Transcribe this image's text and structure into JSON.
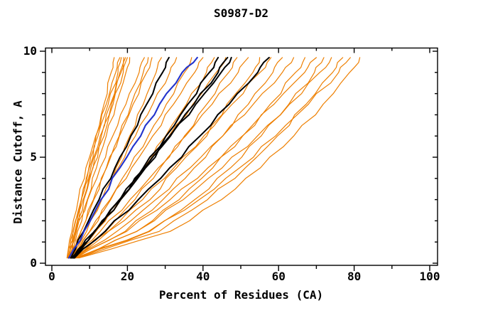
{
  "chart_data": {
    "type": "line",
    "title": "S0987-D2",
    "xlabel": "Percent of Residues (CA)",
    "ylabel": "Distance Cutoff, A",
    "xlim": [
      0,
      100
    ],
    "ylim": [
      0,
      10
    ],
    "x_major_ticks": [
      0,
      20,
      40,
      60,
      80,
      100
    ],
    "x_minor_ticks": [
      10,
      30,
      50,
      70,
      90
    ],
    "y_major_ticks": [
      0,
      5,
      10
    ],
    "y_minor_ticks": [
      1,
      2,
      3,
      4,
      6,
      7,
      8,
      9
    ],
    "grid": "off",
    "legend": "none",
    "colors": {
      "orange": "#ee7f00",
      "black": "#000000",
      "blue": "#2233cc"
    },
    "line_widths": {
      "orange": 1.2,
      "black": 2.0,
      "blue": 2.1
    },
    "sample_y": [
      0.25,
      1.5,
      3.0,
      4.5,
      6.0,
      7.5,
      9.0,
      9.7
    ],
    "series": [
      {
        "name": "orange-01",
        "color": "orange",
        "x": [
          4.0,
          5.3,
          7.0,
          9.0,
          11.6,
          14.4,
          16.9,
          18.0
        ]
      },
      {
        "name": "orange-02",
        "color": "orange",
        "x": [
          4.2,
          5.6,
          7.8,
          9.9,
          12.2,
          14.9,
          17.5,
          18.4
        ]
      },
      {
        "name": "orange-03",
        "color": "orange",
        "x": [
          4.5,
          6.2,
          8.3,
          10.9,
          13.1,
          15.8,
          18.0,
          19.0
        ]
      },
      {
        "name": "orange-04",
        "color": "orange",
        "x": [
          4.3,
          5.7,
          7.8,
          10.3,
          12.8,
          15.5,
          18.3,
          19.5
        ]
      },
      {
        "name": "orange-05",
        "color": "orange",
        "x": [
          4.6,
          6.4,
          8.5,
          10.8,
          13.8,
          16.2,
          18.9,
          20.0
        ]
      },
      {
        "name": "orange-06",
        "color": "orange",
        "x": [
          4.8,
          6.8,
          9.4,
          11.8,
          14.4,
          17.0,
          19.6,
          20.6
        ]
      },
      {
        "name": "orange-07",
        "color": "orange",
        "x": [
          5.0,
          6.1,
          7.9,
          9.8,
          11.7,
          13.8,
          15.7,
          16.5
        ]
      },
      {
        "name": "orange-08",
        "color": "orange",
        "x": [
          4.4,
          6.5,
          9.5,
          12.8,
          16.1,
          19.6,
          23.1,
          24.5
        ]
      },
      {
        "name": "orange-09",
        "color": "orange",
        "x": [
          4.7,
          7.7,
          11.1,
          14.5,
          17.8,
          21.0,
          24.2,
          25.5
        ]
      },
      {
        "name": "orange-10",
        "color": "orange",
        "x": [
          5.2,
          7.7,
          11.0,
          14.4,
          17.9,
          21.5,
          25.1,
          26.5
        ]
      },
      {
        "name": "orange-11",
        "color": "orange",
        "x": [
          5.5,
          9.2,
          13.2,
          17.0,
          20.6,
          24.2,
          27.6,
          29.0
        ]
      },
      {
        "name": "orange-12",
        "color": "orange",
        "x": [
          4.9,
          8.5,
          13.1,
          17.6,
          22.1,
          26.7,
          31.2,
          33.0
        ]
      },
      {
        "name": "orange-13",
        "color": "orange",
        "x": [
          5.3,
          10.1,
          15.4,
          20.5,
          25.5,
          30.3,
          35.1,
          37.0
        ]
      },
      {
        "name": "orange-14",
        "color": "orange",
        "x": [
          5.6,
          10.0,
          15.6,
          21.1,
          26.7,
          32.2,
          37.8,
          40.0
        ]
      },
      {
        "name": "orange-15",
        "color": "orange",
        "x": [
          5.0,
          11.7,
          18.3,
          24.3,
          30.1,
          35.6,
          40.9,
          43.0
        ]
      },
      {
        "name": "orange-16",
        "color": "orange",
        "x": [
          5.8,
          11.5,
          18.2,
          24.7,
          31.0,
          37.3,
          43.5,
          46.0
        ]
      },
      {
        "name": "orange-17",
        "color": "orange",
        "x": [
          6.0,
          14.3,
          22.0,
          28.7,
          35.1,
          41.0,
          46.8,
          49.0
        ]
      },
      {
        "name": "orange-18",
        "color": "orange",
        "x": [
          5.4,
          12.8,
          20.7,
          28.2,
          35.4,
          42.4,
          49.3,
          52.0
        ]
      },
      {
        "name": "orange-19",
        "color": "orange",
        "x": [
          6.2,
          15.0,
          26.0,
          33.0,
          41.0,
          46.3,
          53.2,
          55.0
        ]
      },
      {
        "name": "orange-20",
        "color": "orange",
        "x": [
          5.7,
          14.9,
          24.0,
          32.3,
          40.2,
          47.7,
          55.1,
          58.0
        ]
      },
      {
        "name": "orange-21",
        "color": "orange",
        "x": [
          6.4,
          19.4,
          29.4,
          37.7,
          45.2,
          52.0,
          58.5,
          61.0
        ]
      },
      {
        "name": "orange-22",
        "color": "orange",
        "x": [
          5.9,
          17.2,
          27.5,
          36.6,
          45.2,
          53.3,
          61.0,
          64.0
        ]
      },
      {
        "name": "orange-23",
        "color": "orange",
        "x": [
          6.6,
          22.5,
          33.7,
          42.6,
          50.5,
          57.8,
          64.5,
          67.0
        ]
      },
      {
        "name": "orange-24",
        "color": "orange",
        "x": [
          6.1,
          19.8,
          31.3,
          41.3,
          50.4,
          58.8,
          66.9,
          70.0
        ]
      },
      {
        "name": "orange-25",
        "color": "orange",
        "x": [
          6.8,
          25.9,
          37.8,
          47.3,
          55.4,
          62.7,
          69.5,
          72.0
        ]
      },
      {
        "name": "orange-26",
        "color": "orange",
        "x": [
          6.3,
          22.4,
          34.8,
          45.1,
          54.4,
          62.9,
          70.9,
          74.0
        ]
      },
      {
        "name": "orange-27",
        "color": "orange",
        "x": [
          7.0,
          28.4,
          41.2,
          51.2,
          59.7,
          67.3,
          74.3,
          77.0
        ]
      },
      {
        "name": "orange-28",
        "color": "orange",
        "x": [
          6.5,
          25.6,
          39.0,
          49.7,
          59.2,
          67.9,
          75.9,
          79.0
        ]
      },
      {
        "name": "orange-29",
        "color": "orange",
        "x": [
          7.2,
          31.3,
          44.9,
          55.2,
          64.0,
          71.8,
          78.8,
          81.5
        ]
      },
      {
        "name": "black-1",
        "color": "black",
        "x": [
          5.0,
          8.4,
          12.5,
          16.7,
          20.9,
          25.1,
          29.3,
          31.0
        ]
      },
      {
        "name": "black-2",
        "color": "black",
        "x": [
          5.5,
          11.4,
          18.2,
          24.8,
          31.2,
          37.6,
          44.0,
          46.5
        ]
      },
      {
        "name": "black-3",
        "color": "black",
        "x": [
          5.8,
          11.2,
          17.9,
          24.6,
          31.4,
          38.1,
          44.8,
          47.5
        ]
      },
      {
        "name": "black-4",
        "color": "black",
        "x": [
          5.2,
          11.3,
          18.0,
          24.2,
          30.2,
          36.0,
          41.7,
          44.0
        ]
      },
      {
        "name": "black-5",
        "color": "black",
        "x": [
          6.0,
          14.1,
          22.9,
          31.2,
          39.2,
          46.9,
          54.5,
          57.5
        ]
      },
      {
        "name": "blue-1",
        "color": "blue",
        "x": [
          4.5,
          8.5,
          13.0,
          18.0,
          23.5,
          28.5,
          34.5,
          38.5
        ]
      }
    ]
  }
}
